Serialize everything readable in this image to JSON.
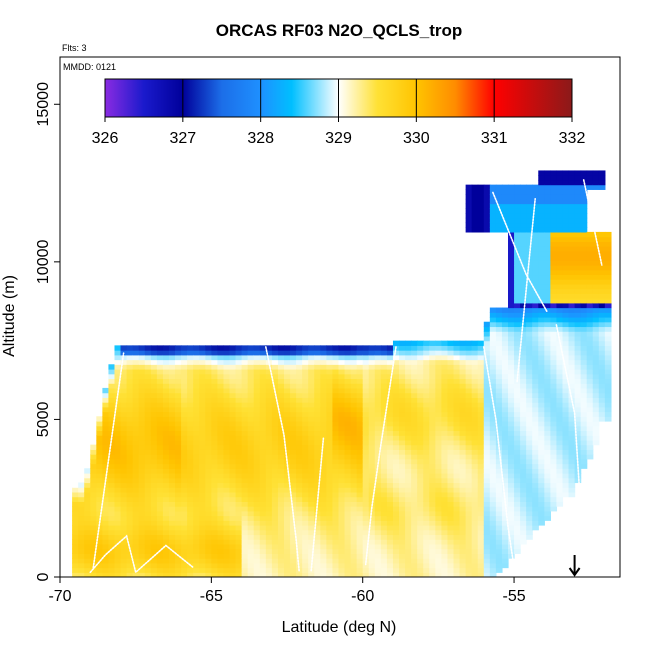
{
  "chart_data": {
    "type": "heatmap",
    "title": "ORCAS RF03 N2O_QCLS_trop",
    "subtitle_flights": "Flts: 3",
    "subtitle_date": "MMDD: 0121",
    "xlabel": "Latitude (deg N)",
    "ylabel": "Altitude (m)",
    "xlim": [
      -70,
      -51.5
    ],
    "ylim": [
      0,
      16500
    ],
    "x_ticks": [
      -70,
      -65,
      -60,
      -55
    ],
    "x_tick_labels": [
      "-70",
      "-65",
      "-60",
      "-55"
    ],
    "y_ticks": [
      0,
      5000,
      10000,
      15000
    ],
    "y_tick_labels": [
      "0",
      "5000",
      "10000",
      "15000"
    ],
    "colorbar": {
      "min": 326,
      "max": 332,
      "ticks": [
        326,
        327,
        328,
        329,
        330,
        331,
        332
      ],
      "tick_labels": [
        "326",
        "327",
        "328",
        "329",
        "330",
        "331",
        "332"
      ],
      "stops": [
        {
          "value": 326.0,
          "color": "#8a2be2"
        },
        {
          "value": 326.5,
          "color": "#1a1acc"
        },
        {
          "value": 327.0,
          "color": "#00009a"
        },
        {
          "value": 327.5,
          "color": "#1c6ee8"
        },
        {
          "value": 328.0,
          "color": "#1e90ff"
        },
        {
          "value": 328.4,
          "color": "#00bfff"
        },
        {
          "value": 329.0,
          "color": "#ffffff"
        },
        {
          "value": 329.5,
          "color": "#ffe135"
        },
        {
          "value": 330.0,
          "color": "#ffc400"
        },
        {
          "value": 330.5,
          "color": "#ff8c00"
        },
        {
          "value": 331.0,
          "color": "#ff0000"
        },
        {
          "value": 332.0,
          "color": "#8b1a1a"
        }
      ]
    },
    "marker": {
      "lat": -53,
      "alt": 0,
      "shape": "down-arrow"
    }
  }
}
